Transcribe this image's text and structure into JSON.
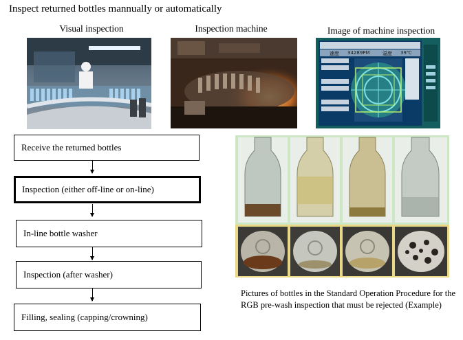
{
  "title": "Inspect returned bottles mannually or automatically",
  "captions": {
    "visual": "Visual inspection",
    "machine": "Inspection machine",
    "image": "Image of machine inspection"
  },
  "flow": [
    "Receive the returned bottles",
    "Inspection (either off-line or on-line)",
    "In-line bottle washer",
    "Inspection (after washer)",
    "Filling, sealing (capping/crowning)"
  ],
  "note": "Pictures of bottles in the Standard Operation Procedure for the RGB pre-wash inspection that must be rejected (Example)",
  "screen_readout": {
    "field1": "速度",
    "value1": "34289PM",
    "field2": "温度",
    "value2": "39℃"
  },
  "colors": {
    "screen_bg": "#1a6b6b",
    "screen_panel": "#0a3a66",
    "green_border": "#cde6c4",
    "yellow_border": "#e8d887"
  }
}
